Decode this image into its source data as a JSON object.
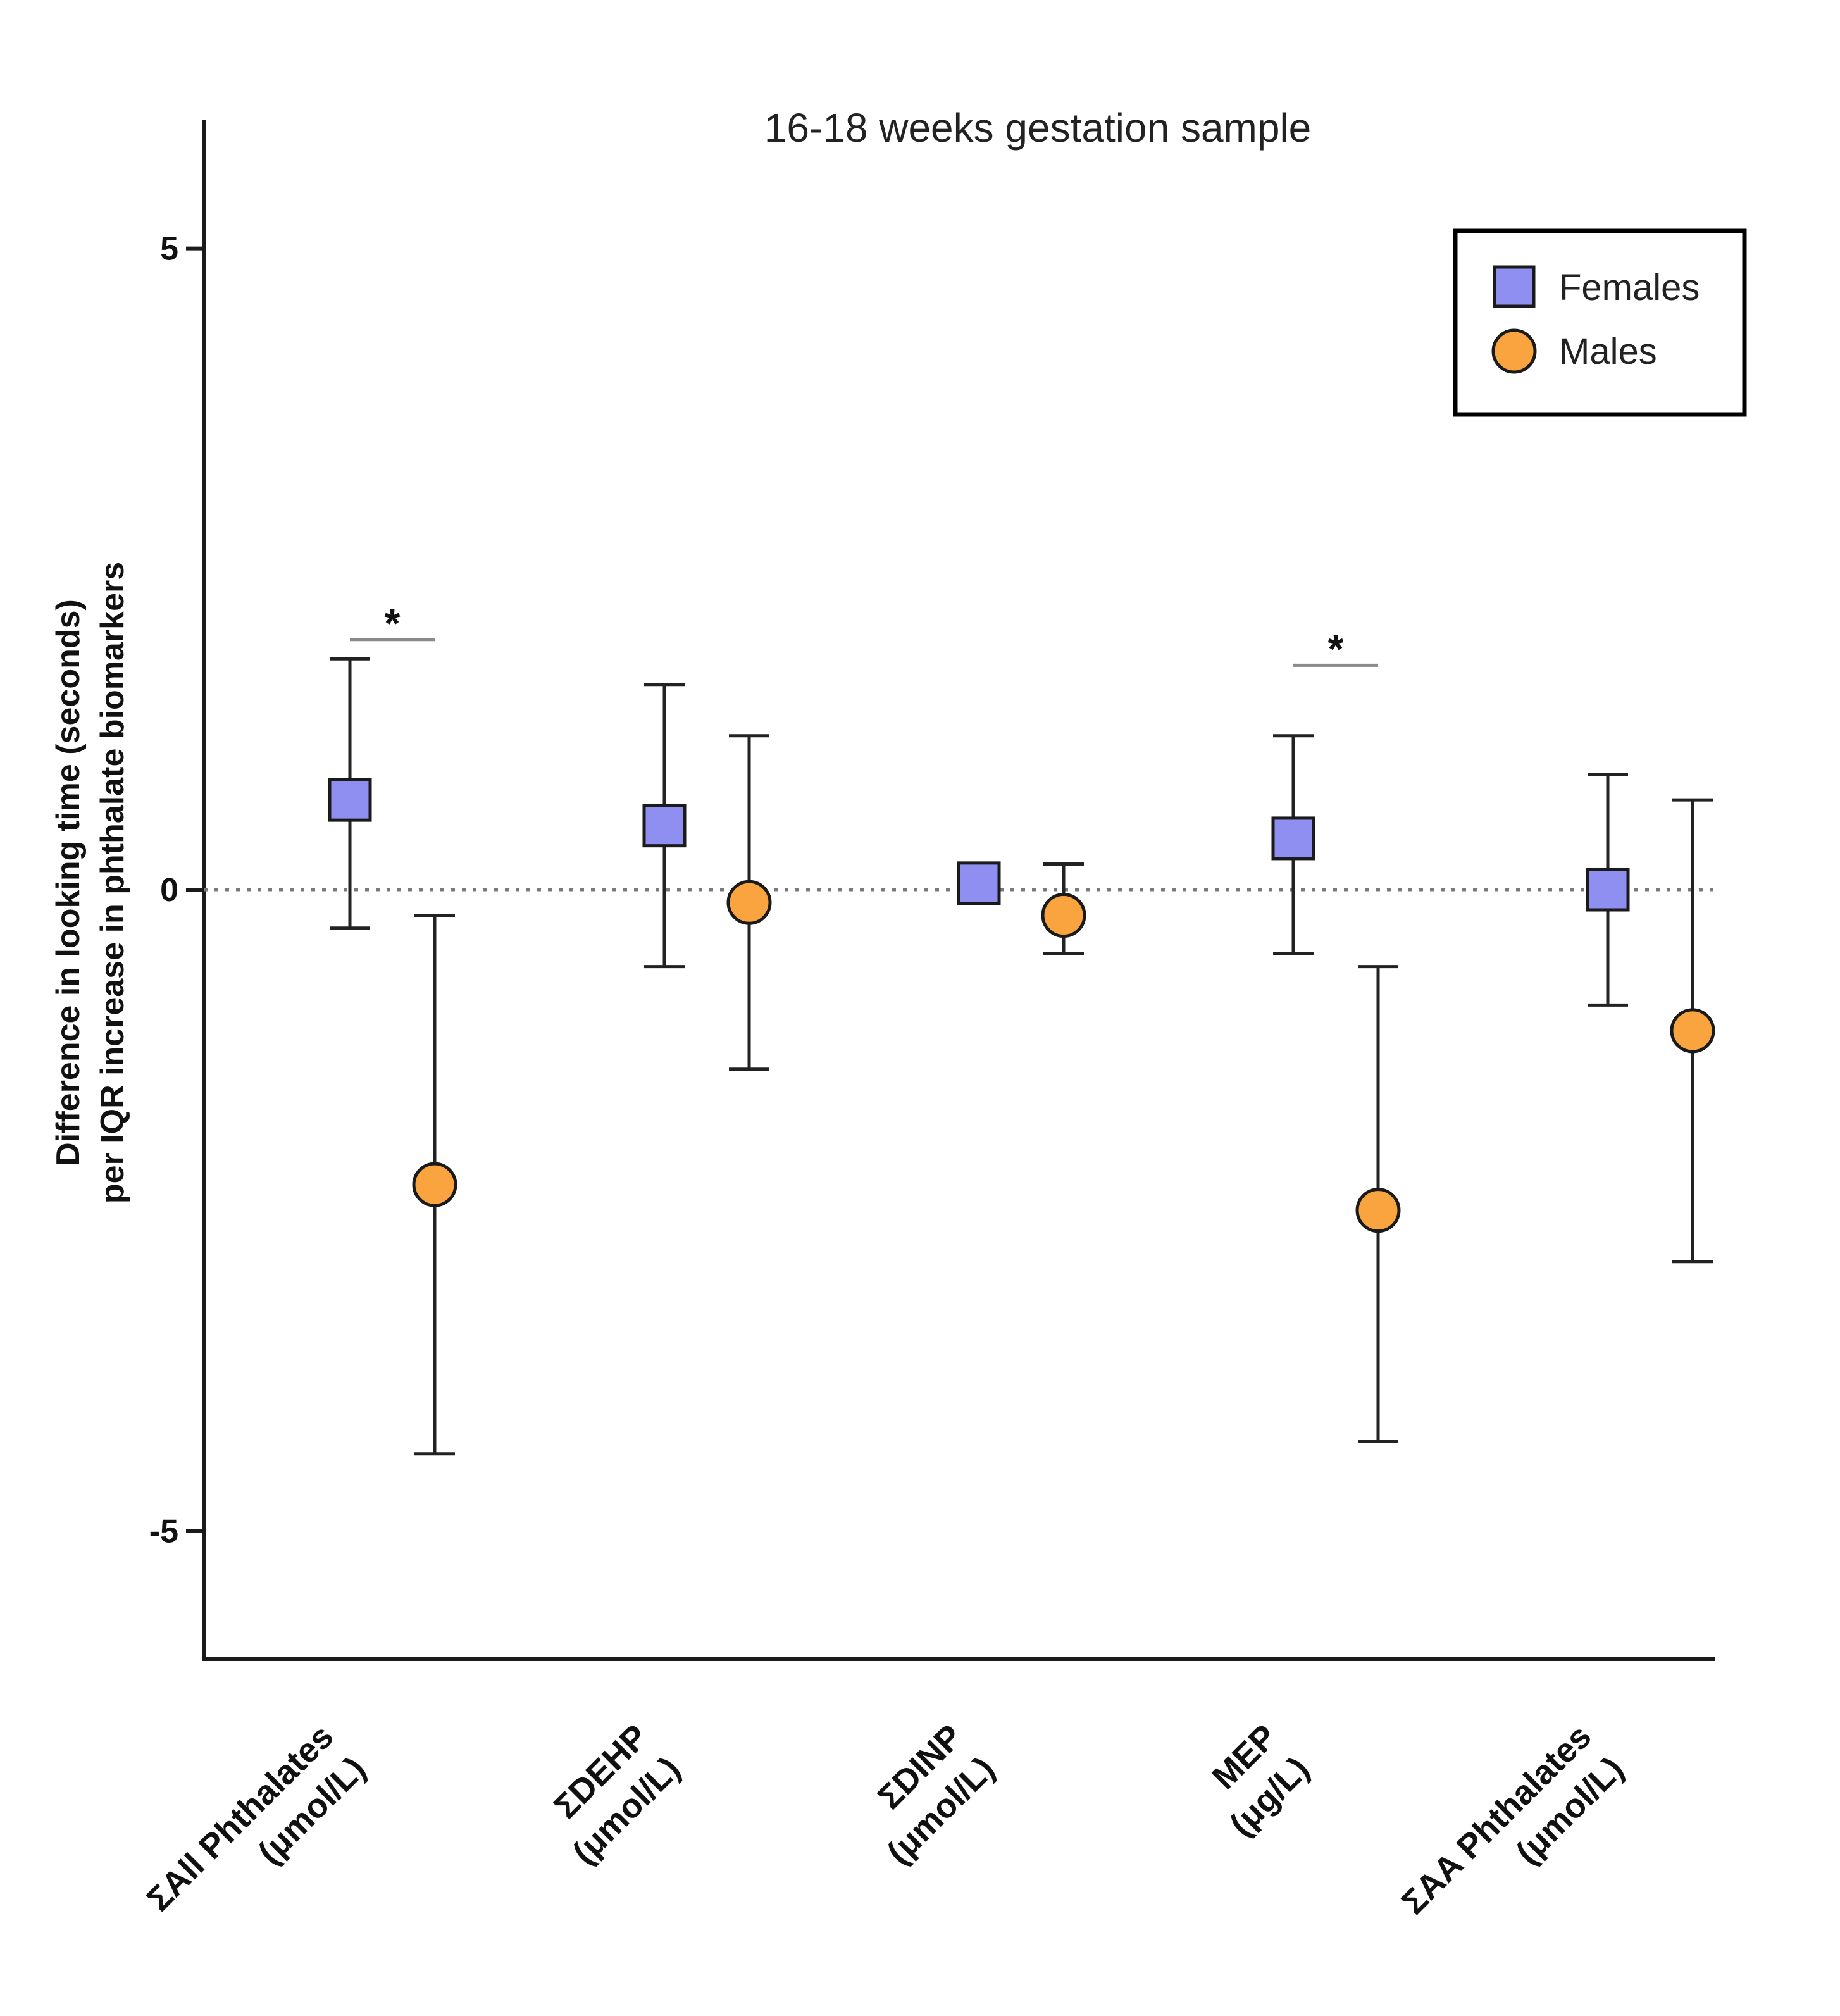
{
  "chart_data": {
    "type": "scatter",
    "title": "16-18 weeks gestation sample",
    "ylabel_lines": [
      "Difference in looking time (seconds)",
      "per IQR increase in phthalate biomarkers"
    ],
    "xlabel": "",
    "ylim": [
      -6,
      6
    ],
    "yticks": [
      {
        "value": 5,
        "label": "5"
      },
      {
        "value": 0,
        "label": "0"
      },
      {
        "value": -5,
        "label": "-5"
      }
    ],
    "reference_line": 0,
    "categories": [
      {
        "line1": "ΣAll Phthalates",
        "line2": "(μmol/L)"
      },
      {
        "line1": "ΣDEHP",
        "line2": "(μmol/L)"
      },
      {
        "line1": "ΣDINP",
        "line2": "(μmol/L)"
      },
      {
        "line1": "MEP",
        "line2": "(μg/L)"
      },
      {
        "line1": "ΣAA Phthalates",
        "line2": "(μmol/L)"
      }
    ],
    "series": [
      {
        "name": "Females",
        "marker": "square",
        "color": "#8f8ff2",
        "values": [
          0.7,
          0.5,
          0.05,
          0.4,
          0.0
        ],
        "ci_low": [
          -0.3,
          -0.6,
          0.05,
          -0.5,
          -0.9
        ],
        "ci_high": [
          1.8,
          1.6,
          0.05,
          1.2,
          0.9
        ]
      },
      {
        "name": "Males",
        "marker": "circle",
        "color": "#f9a43f",
        "values": [
          -2.3,
          -0.1,
          -0.2,
          -2.5,
          -1.1
        ],
        "ci_low": [
          -4.4,
          -1.4,
          -0.5,
          -4.3,
          -2.9
        ],
        "ci_high": [
          -0.2,
          1.2,
          0.2,
          -0.6,
          0.7
        ]
      }
    ],
    "significance": [
      {
        "category_index": 0,
        "label": "*",
        "value": 1.95
      },
      {
        "category_index": 3,
        "label": "*",
        "value": 1.75
      }
    ],
    "legend": {
      "position": "top-right",
      "entries": [
        "Females",
        "Males"
      ]
    }
  }
}
